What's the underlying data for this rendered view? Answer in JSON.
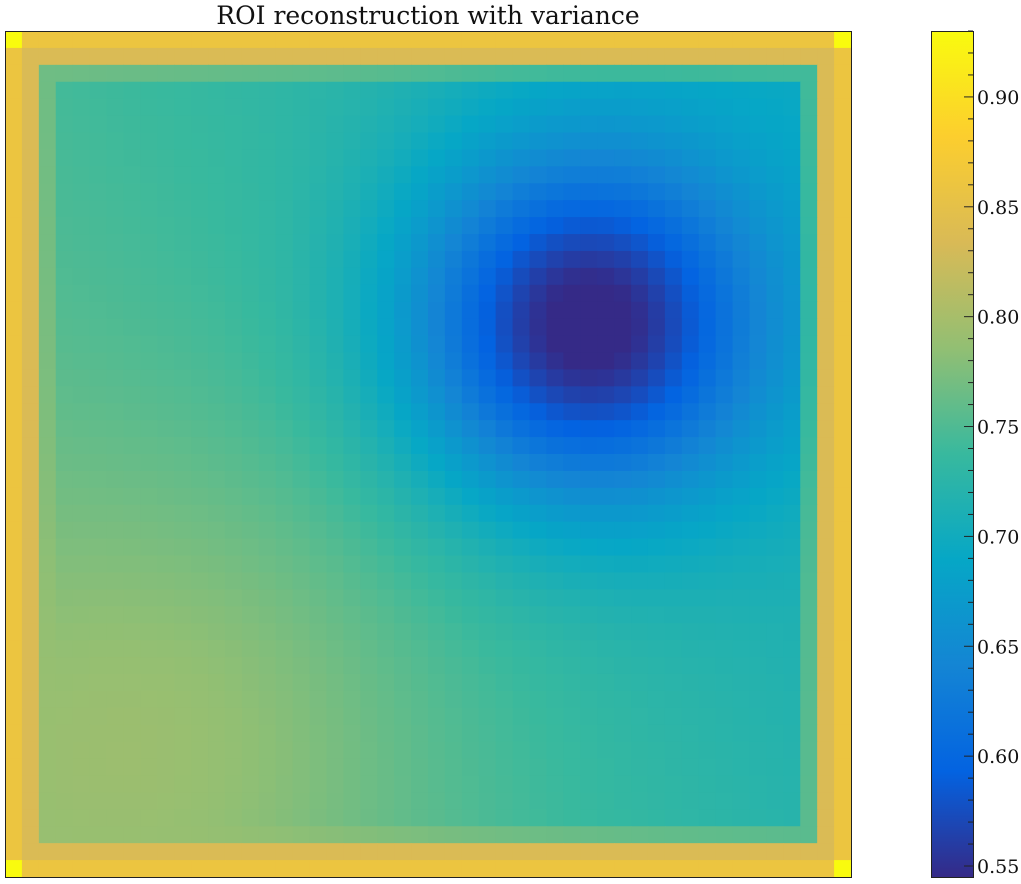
{
  "chart_data": {
    "type": "heatmap",
    "title": "ROI reconstruction with variance",
    "xlabel": "",
    "ylabel": "",
    "grid": false,
    "colormap": "parula",
    "grid_size": [
      50,
      50
    ],
    "value_range": [
      0.545,
      0.93
    ],
    "field": {
      "base": 0.745,
      "gradient_x": -0.05,
      "gradient_y": 0.025,
      "lower_left_bump": {
        "center": [
          0.21,
          0.82
        ],
        "amplitude": 0.035,
        "sigma": 0.22
      },
      "dip": {
        "center": [
          0.685,
          0.35
        ],
        "amplitude": -0.185,
        "sigma": 0.145
      },
      "frame": {
        "ring_1": 0.86,
        "ring_2": 0.835,
        "ring_3": 0.79,
        "corner": 0.93
      }
    },
    "colorbar": {
      "ticks": [
        0.55,
        0.6,
        0.65,
        0.7,
        0.75,
        0.8,
        0.85,
        0.9
      ],
      "tick_labels": [
        "0.55",
        "0.60",
        "0.65",
        "0.70",
        "0.75",
        "0.80",
        "0.85",
        "0.90"
      ]
    }
  }
}
